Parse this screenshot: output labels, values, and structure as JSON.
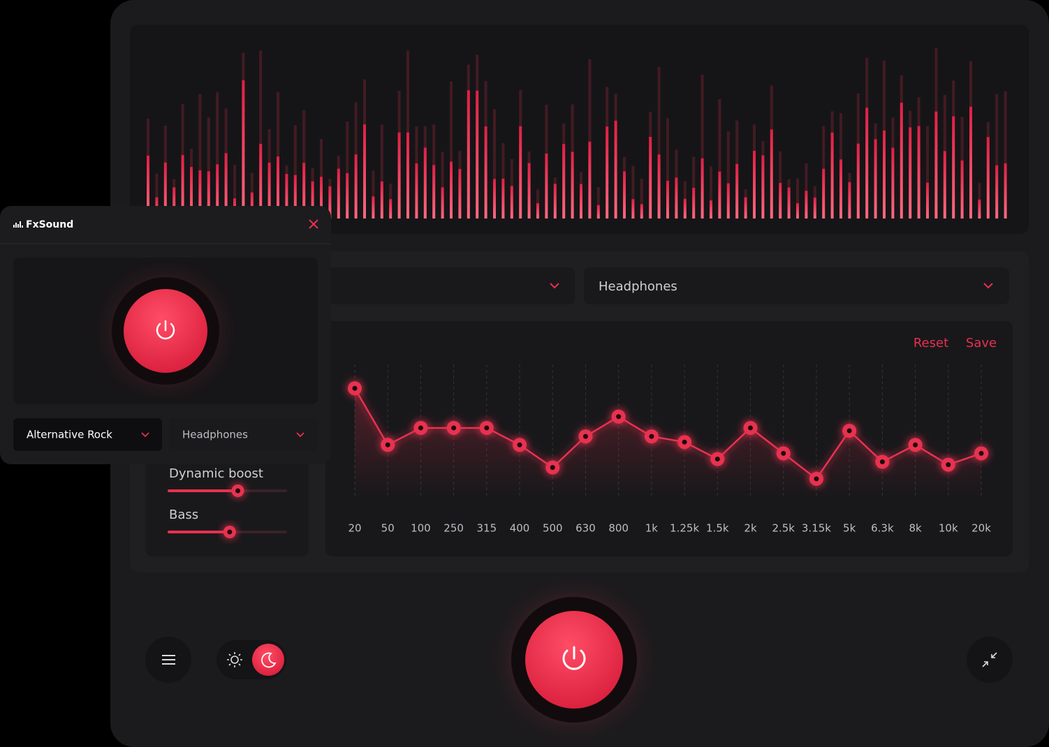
{
  "app": {
    "name": "FxSound"
  },
  "popup": {
    "preset": "Alternative Rock",
    "output": "Headphones"
  },
  "main": {
    "output": "Headphones",
    "actions": {
      "reset": "Reset",
      "save": "Save"
    },
    "sliders": [
      {
        "label": "Dynamic boost",
        "value": 59
      },
      {
        "label": "Bass",
        "value": 52
      }
    ],
    "eq": {
      "bands": [
        "20",
        "50",
        "100",
        "250",
        "315",
        "400",
        "500",
        "630",
        "800",
        "1k",
        "1.25k",
        "1.5k",
        "2k",
        "2.5k",
        "3.15k",
        "5k",
        "6.3k",
        "8k",
        "10k",
        "20k"
      ],
      "gains": [
        7.5,
        -2.5,
        0.5,
        0.5,
        0.5,
        -2.5,
        -6.5,
        -1,
        2.5,
        -1,
        -2,
        -5,
        0.5,
        -4,
        -8.5,
        0,
        -5.5,
        -2.5,
        -6,
        -4
      ]
    }
  }
}
